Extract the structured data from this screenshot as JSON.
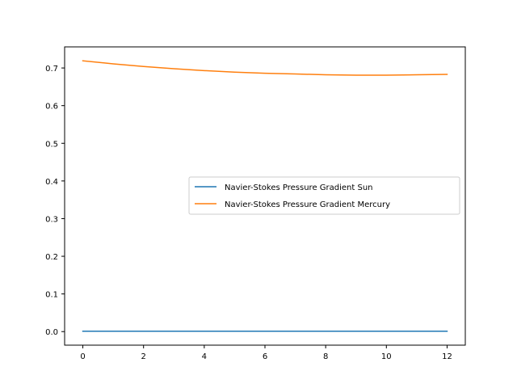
{
  "chart_data": {
    "type": "line",
    "title": "",
    "xlabel": "",
    "ylabel": "",
    "xlim": [
      -0.6,
      12.6
    ],
    "ylim": [
      -0.036,
      0.756
    ],
    "xticks": [
      0,
      2,
      4,
      6,
      8,
      10,
      12
    ],
    "yticks": [
      0.0,
      0.1,
      0.2,
      0.3,
      0.4,
      0.5,
      0.6,
      0.7
    ],
    "xtick_labels": [
      "0",
      "2",
      "4",
      "6",
      "8",
      "10",
      "12"
    ],
    "ytick_labels": [
      "0.0",
      "0.1",
      "0.2",
      "0.3",
      "0.4",
      "0.5",
      "0.6",
      "0.7"
    ],
    "grid": false,
    "legend_position": "center-right",
    "series": [
      {
        "name": "Navier-Stokes Pressure Gradient Sun",
        "color": "#1f77b4",
        "x": [
          0,
          1,
          2,
          3,
          4,
          5,
          6,
          7,
          8,
          9,
          10,
          11,
          12
        ],
        "y": [
          0.001,
          0.001,
          0.001,
          0.001,
          0.001,
          0.001,
          0.001,
          0.001,
          0.001,
          0.001,
          0.001,
          0.001,
          0.001
        ]
      },
      {
        "name": "Navier-Stokes Pressure Gradient Mercury",
        "color": "#ff7f0e",
        "x": [
          0,
          1,
          2,
          3,
          4,
          5,
          6,
          7,
          8,
          9,
          10,
          11,
          12
        ],
        "y": [
          0.719,
          0.711,
          0.704,
          0.698,
          0.693,
          0.689,
          0.686,
          0.684,
          0.682,
          0.681,
          0.681,
          0.682,
          0.683
        ]
      }
    ]
  }
}
